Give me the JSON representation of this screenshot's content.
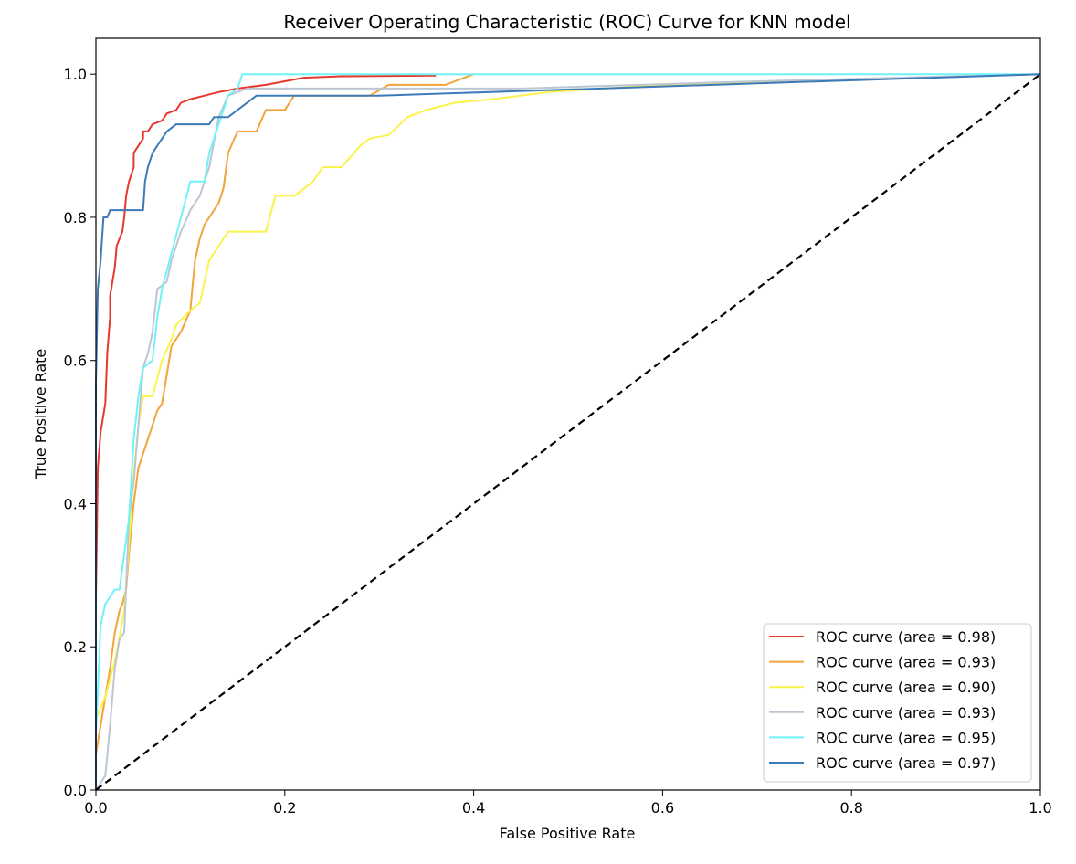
{
  "chart_data": {
    "type": "line",
    "title": "Receiver Operating Characteristic (ROC) Curve for KNN model",
    "xlabel": "False Positive Rate",
    "ylabel": "True Positive Rate",
    "xlim": [
      0.0,
      1.0
    ],
    "ylim": [
      0.0,
      1.05
    ],
    "x_ticks": [
      "0.0",
      "0.2",
      "0.4",
      "0.6",
      "0.8",
      "1.0"
    ],
    "y_ticks": [
      "0.0",
      "0.2",
      "0.4",
      "0.6",
      "0.8",
      "1.0"
    ],
    "grid": false,
    "legend_position": "lower-right",
    "series": [
      {
        "name": "ROC curve (area = 0.98)",
        "color": "#e8382d",
        "points": [
          [
            0.0,
            0.0
          ],
          [
            0.0,
            0.27
          ],
          [
            0.002,
            0.45
          ],
          [
            0.005,
            0.5
          ],
          [
            0.01,
            0.54
          ],
          [
            0.012,
            0.61
          ],
          [
            0.015,
            0.66
          ],
          [
            0.015,
            0.69
          ],
          [
            0.02,
            0.73
          ],
          [
            0.022,
            0.76
          ],
          [
            0.025,
            0.77
          ],
          [
            0.028,
            0.78
          ],
          [
            0.03,
            0.8
          ],
          [
            0.032,
            0.83
          ],
          [
            0.035,
            0.85
          ],
          [
            0.04,
            0.87
          ],
          [
            0.04,
            0.89
          ],
          [
            0.045,
            0.9
          ],
          [
            0.05,
            0.91
          ],
          [
            0.05,
            0.92
          ],
          [
            0.055,
            0.92
          ],
          [
            0.06,
            0.93
          ],
          [
            0.07,
            0.935
          ],
          [
            0.075,
            0.945
          ],
          [
            0.085,
            0.95
          ],
          [
            0.09,
            0.96
          ],
          [
            0.1,
            0.965
          ],
          [
            0.115,
            0.97
          ],
          [
            0.13,
            0.975
          ],
          [
            0.15,
            0.98
          ],
          [
            0.18,
            0.985
          ],
          [
            0.2,
            0.99
          ],
          [
            0.22,
            0.995
          ],
          [
            0.26,
            0.997
          ],
          [
            0.36,
            0.998
          ]
        ]
      },
      {
        "name": "ROC curve (area = 0.93)",
        "color": "#f0a43a",
        "points": [
          [
            0.0,
            0.0
          ],
          [
            0.0,
            0.05
          ],
          [
            0.01,
            0.13
          ],
          [
            0.015,
            0.17
          ],
          [
            0.02,
            0.22
          ],
          [
            0.025,
            0.25
          ],
          [
            0.028,
            0.26
          ],
          [
            0.032,
            0.28
          ],
          [
            0.035,
            0.33
          ],
          [
            0.04,
            0.4
          ],
          [
            0.045,
            0.45
          ],
          [
            0.055,
            0.49
          ],
          [
            0.065,
            0.53
          ],
          [
            0.07,
            0.54
          ],
          [
            0.075,
            0.58
          ],
          [
            0.08,
            0.62
          ],
          [
            0.09,
            0.64
          ],
          [
            0.1,
            0.67
          ],
          [
            0.102,
            0.7
          ],
          [
            0.105,
            0.74
          ],
          [
            0.11,
            0.77
          ],
          [
            0.115,
            0.79
          ],
          [
            0.12,
            0.8
          ],
          [
            0.125,
            0.81
          ],
          [
            0.13,
            0.82
          ],
          [
            0.135,
            0.84
          ],
          [
            0.14,
            0.89
          ],
          [
            0.15,
            0.92
          ],
          [
            0.17,
            0.92
          ],
          [
            0.18,
            0.95
          ],
          [
            0.2,
            0.95
          ],
          [
            0.21,
            0.97
          ],
          [
            0.29,
            0.97
          ],
          [
            0.31,
            0.985
          ],
          [
            0.37,
            0.985
          ],
          [
            0.4,
            1.0
          ]
        ]
      },
      {
        "name": "ROC curve (area = 0.90)",
        "color": "#faf34a",
        "points": [
          [
            0.0,
            0.0
          ],
          [
            0.0,
            0.1
          ],
          [
            0.01,
            0.13
          ],
          [
            0.02,
            0.18
          ],
          [
            0.03,
            0.25
          ],
          [
            0.04,
            0.44
          ],
          [
            0.045,
            0.51
          ],
          [
            0.05,
            0.55
          ],
          [
            0.06,
            0.55
          ],
          [
            0.07,
            0.6
          ],
          [
            0.08,
            0.63
          ],
          [
            0.085,
            0.65
          ],
          [
            0.1,
            0.67
          ],
          [
            0.11,
            0.68
          ],
          [
            0.12,
            0.74
          ],
          [
            0.13,
            0.76
          ],
          [
            0.14,
            0.78
          ],
          [
            0.18,
            0.78
          ],
          [
            0.19,
            0.83
          ],
          [
            0.21,
            0.83
          ],
          [
            0.23,
            0.85
          ],
          [
            0.24,
            0.87
          ],
          [
            0.26,
            0.87
          ],
          [
            0.28,
            0.9
          ],
          [
            0.29,
            0.91
          ],
          [
            0.31,
            0.915
          ],
          [
            0.33,
            0.94
          ],
          [
            0.35,
            0.95
          ],
          [
            0.38,
            0.96
          ],
          [
            0.42,
            0.965
          ],
          [
            0.48,
            0.975
          ],
          [
            0.6,
            0.985
          ],
          [
            1.0,
            1.0
          ]
        ]
      },
      {
        "name": "ROC curve (area = 0.93)",
        "color": "#bcc6d3",
        "points": [
          [
            0.0,
            0.0
          ],
          [
            0.01,
            0.02
          ],
          [
            0.015,
            0.09
          ],
          [
            0.02,
            0.17
          ],
          [
            0.025,
            0.21
          ],
          [
            0.03,
            0.22
          ],
          [
            0.035,
            0.38
          ],
          [
            0.04,
            0.43
          ],
          [
            0.05,
            0.59
          ],
          [
            0.055,
            0.61
          ],
          [
            0.06,
            0.64
          ],
          [
            0.065,
            0.7
          ],
          [
            0.075,
            0.71
          ],
          [
            0.08,
            0.74
          ],
          [
            0.09,
            0.78
          ],
          [
            0.1,
            0.81
          ],
          [
            0.11,
            0.83
          ],
          [
            0.12,
            0.87
          ],
          [
            0.13,
            0.94
          ],
          [
            0.14,
            0.97
          ],
          [
            0.16,
            0.98
          ],
          [
            0.25,
            0.98
          ],
          [
            0.45,
            0.98
          ],
          [
            0.7,
            0.99
          ],
          [
            1.0,
            1.0
          ]
        ]
      },
      {
        "name": "ROC curve (area = 0.95)",
        "color": "#6ef3f7",
        "points": [
          [
            0.0,
            0.0
          ],
          [
            0.0,
            0.08
          ],
          [
            0.005,
            0.23
          ],
          [
            0.01,
            0.26
          ],
          [
            0.015,
            0.27
          ],
          [
            0.02,
            0.28
          ],
          [
            0.025,
            0.28
          ],
          [
            0.03,
            0.33
          ],
          [
            0.035,
            0.38
          ],
          [
            0.04,
            0.49
          ],
          [
            0.045,
            0.55
          ],
          [
            0.05,
            0.59
          ],
          [
            0.06,
            0.6
          ],
          [
            0.065,
            0.66
          ],
          [
            0.07,
            0.7
          ],
          [
            0.08,
            0.75
          ],
          [
            0.09,
            0.8
          ],
          [
            0.1,
            0.85
          ],
          [
            0.115,
            0.85
          ],
          [
            0.12,
            0.89
          ],
          [
            0.13,
            0.93
          ],
          [
            0.14,
            0.97
          ],
          [
            0.15,
            0.98
          ],
          [
            0.155,
            1.0
          ],
          [
            1.0,
            1.0
          ]
        ]
      },
      {
        "name": "ROC curve (area = 0.97)",
        "color": "#3d7ab8",
        "points": [
          [
            0.0,
            0.0
          ],
          [
            0.0,
            0.57
          ],
          [
            0.002,
            0.7
          ],
          [
            0.005,
            0.74
          ],
          [
            0.008,
            0.8
          ],
          [
            0.012,
            0.8
          ],
          [
            0.015,
            0.81
          ],
          [
            0.05,
            0.81
          ],
          [
            0.052,
            0.85
          ],
          [
            0.055,
            0.87
          ],
          [
            0.06,
            0.89
          ],
          [
            0.065,
            0.9
          ],
          [
            0.07,
            0.91
          ],
          [
            0.075,
            0.92
          ],
          [
            0.085,
            0.93
          ],
          [
            0.12,
            0.93
          ],
          [
            0.125,
            0.94
          ],
          [
            0.14,
            0.94
          ],
          [
            0.17,
            0.97
          ],
          [
            0.3,
            0.97
          ],
          [
            1.0,
            1.0
          ]
        ]
      },
      {
        "name": "",
        "color": "#000000",
        "dashed": true,
        "points": [
          [
            0.0,
            0.0
          ],
          [
            1.0,
            1.0
          ]
        ]
      }
    ]
  }
}
